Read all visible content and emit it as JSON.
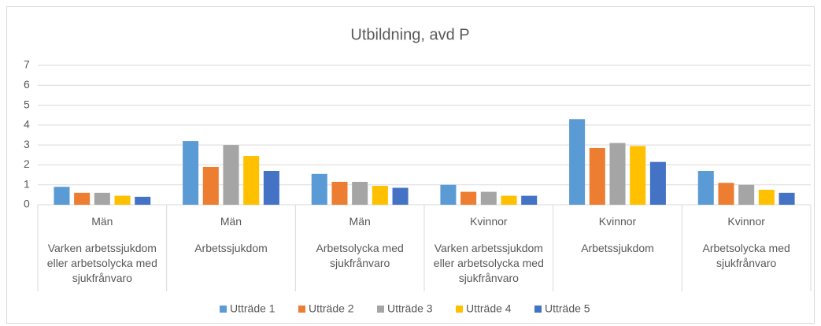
{
  "chart_data": {
    "type": "bar",
    "title": "Utbildning, avd P",
    "categories": [
      "Män",
      "Män",
      "Män",
      "Kvinnor",
      "Kvinnor",
      "Kvinnor"
    ],
    "subcategories": [
      "Varken arbetssjukdom eller arbetsolycka med sjukfrånvaro",
      "Arbetssjukdom",
      "Arbetsolycka med sjukfrånvaro",
      "Varken arbetssjukdom eller arbetsolycka med sjukfrånvaro",
      "Arbetssjukdom",
      "Arbetsolycka med sjukfrånvaro"
    ],
    "series": [
      {
        "name": "Utträde 1",
        "color": "#5b9bd5",
        "values": [
          0.9,
          3.2,
          1.55,
          1.0,
          4.3,
          1.7
        ]
      },
      {
        "name": "Utträde 2",
        "color": "#ed7d31",
        "values": [
          0.6,
          1.9,
          1.15,
          0.65,
          2.85,
          1.1
        ]
      },
      {
        "name": "Utträde 3",
        "color": "#a5a5a5",
        "values": [
          0.6,
          3.0,
          1.15,
          0.65,
          3.1,
          1.0
        ]
      },
      {
        "name": "Utträde 4",
        "color": "#ffc000",
        "values": [
          0.45,
          2.45,
          0.95,
          0.45,
          2.95,
          0.75
        ]
      },
      {
        "name": "Utträde 5",
        "color": "#4472c4",
        "values": [
          0.4,
          1.7,
          0.85,
          0.45,
          2.15,
          0.6
        ]
      }
    ],
    "ylim": [
      0,
      7
    ],
    "yticks": [
      0,
      1,
      2,
      3,
      4,
      5,
      6,
      7
    ],
    "grid": true,
    "legend": "bottom"
  }
}
